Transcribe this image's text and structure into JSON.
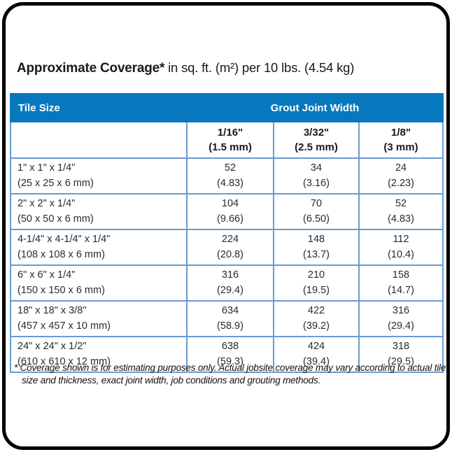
{
  "title": {
    "bold": "Approximate Coverage*",
    "rest": " in sq. ft. (m²) per 10 lbs. (4.54 kg)"
  },
  "colors": {
    "header_blue": "#0878be",
    "grid_blue": "#6b9bd2",
    "frame_black": "#000000"
  },
  "table": {
    "header": {
      "tile_size": "Tile Size",
      "grout_joint_width": "Grout Joint Width"
    },
    "columns": [
      {
        "line1": "1/16\"",
        "line2": "(1.5 mm)"
      },
      {
        "line1": "3/32\"",
        "line2": "(2.5 mm)"
      },
      {
        "line1": "1/8\"",
        "line2": "(3 mm)"
      }
    ],
    "rows": [
      {
        "size": "1\" x 1\" x 1/4\"",
        "metric": "(25 x 25 x 6 mm)",
        "values": [
          {
            "v": "52",
            "m": "(4.83)"
          },
          {
            "v": "34",
            "m": "(3.16)"
          },
          {
            "v": "24",
            "m": "(2.23)"
          }
        ]
      },
      {
        "size": "2\" x 2\" x 1/4\"",
        "metric": "(50 x 50 x 6 mm)",
        "values": [
          {
            "v": "104",
            "m": "(9.66)"
          },
          {
            "v": "70",
            "m": "(6.50)"
          },
          {
            "v": "52",
            "m": "(4.83)"
          }
        ]
      },
      {
        "size": "4-1/4\" x 4-1/4\" x 1/4\"",
        "metric": "(108 x 108 x 6 mm)",
        "values": [
          {
            "v": "224",
            "m": "(20.8)"
          },
          {
            "v": "148",
            "m": "(13.7)"
          },
          {
            "v": "112",
            "m": "(10.4)"
          }
        ]
      },
      {
        "size": "6\" x 6\" x 1/4\"",
        "metric": "(150 x 150 x 6 mm)",
        "values": [
          {
            "v": "316",
            "m": "(29.4)"
          },
          {
            "v": "210",
            "m": "(19.5)"
          },
          {
            "v": "158",
            "m": "(14.7)"
          }
        ]
      },
      {
        "size": "18\" x 18\" x 3/8\"",
        "metric": "(457 x 457 x 10 mm)",
        "values": [
          {
            "v": "634",
            "m": "(58.9)"
          },
          {
            "v": "422",
            "m": "(39.2)"
          },
          {
            "v": "316",
            "m": "(29.4)"
          }
        ]
      },
      {
        "size": "24\" x 24\" x 1/2\"",
        "metric": "(610 x 610 x 12 mm)",
        "values": [
          {
            "v": "638",
            "m": "(59.3)"
          },
          {
            "v": "424",
            "m": "(39.4)"
          },
          {
            "v": "318",
            "m": "(29.5)"
          }
        ]
      }
    ]
  },
  "footnote": "* Coverage shown is for estimating purposes only. Actual jobsite coverage may vary according to actual tile size and thickness, exact joint width, job conditions and grouting methods."
}
